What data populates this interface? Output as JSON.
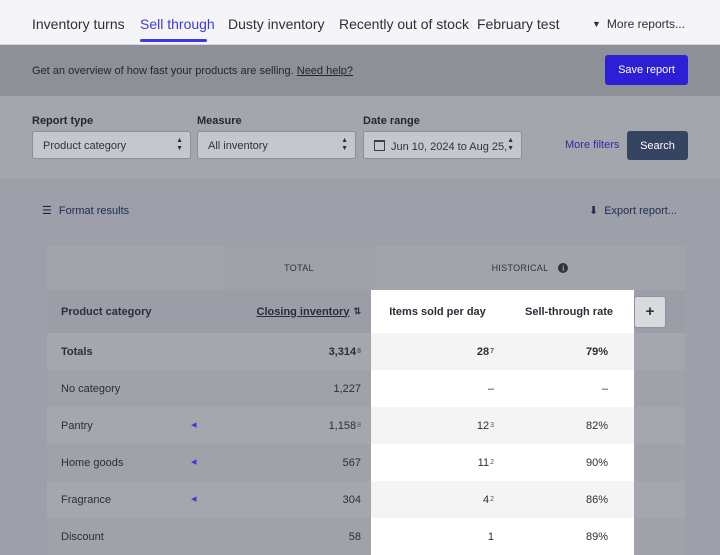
{
  "tabs": [
    {
      "label": "Inventory turns"
    },
    {
      "label": "Sell through"
    },
    {
      "label": "Dusty inventory"
    },
    {
      "label": "Recently out of stock"
    },
    {
      "label": "February test"
    }
  ],
  "more_reports": "More reports...",
  "banner": {
    "text": "Get an overview of how fast your products are selling.",
    "link": "Need help?"
  },
  "save_report": "Save report",
  "filters": {
    "report_type": {
      "label": "Report type",
      "value": "Product category"
    },
    "measure": {
      "label": "Measure",
      "value": "All inventory"
    },
    "date_range": {
      "label": "Date range",
      "value": "Jun 10, 2024 to Aug 25,"
    },
    "more_filters": "More filters",
    "search": "Search"
  },
  "actions": {
    "format": "Format results",
    "export": "Export report..."
  },
  "table": {
    "group_total": "TOTAL",
    "group_historical": "HISTORICAL",
    "col_name": "Product category",
    "col_closing": "Closing inventory",
    "col_sold": "Items sold per day",
    "col_rate": "Sell-through rate",
    "rows": [
      {
        "name": "Totals",
        "closing": "3,314",
        "closing_dec": "8",
        "sold": "28",
        "sold_dec": "7",
        "rate": "79%"
      },
      {
        "name": "No category",
        "closing": "1,227",
        "closing_dec": "",
        "sold": "–",
        "sold_dec": "",
        "rate": "–"
      },
      {
        "name": "Pantry",
        "closing": "1,158",
        "closing_dec": "8",
        "sold": "12",
        "sold_dec": "3",
        "rate": "82%"
      },
      {
        "name": "Home goods",
        "closing": "567",
        "closing_dec": "",
        "sold": "11",
        "sold_dec": "2",
        "rate": "90%"
      },
      {
        "name": "Fragrance",
        "closing": "304",
        "closing_dec": "",
        "sold": "4",
        "sold_dec": "2",
        "rate": "86%"
      },
      {
        "name": "Discount",
        "closing": "58",
        "closing_dec": "",
        "sold": "1",
        "sold_dec": "",
        "rate": "89%"
      }
    ]
  },
  "colors": {
    "accent": "#3b3ae0",
    "save_button": "#2c1fd6",
    "search_button": "#354561"
  }
}
